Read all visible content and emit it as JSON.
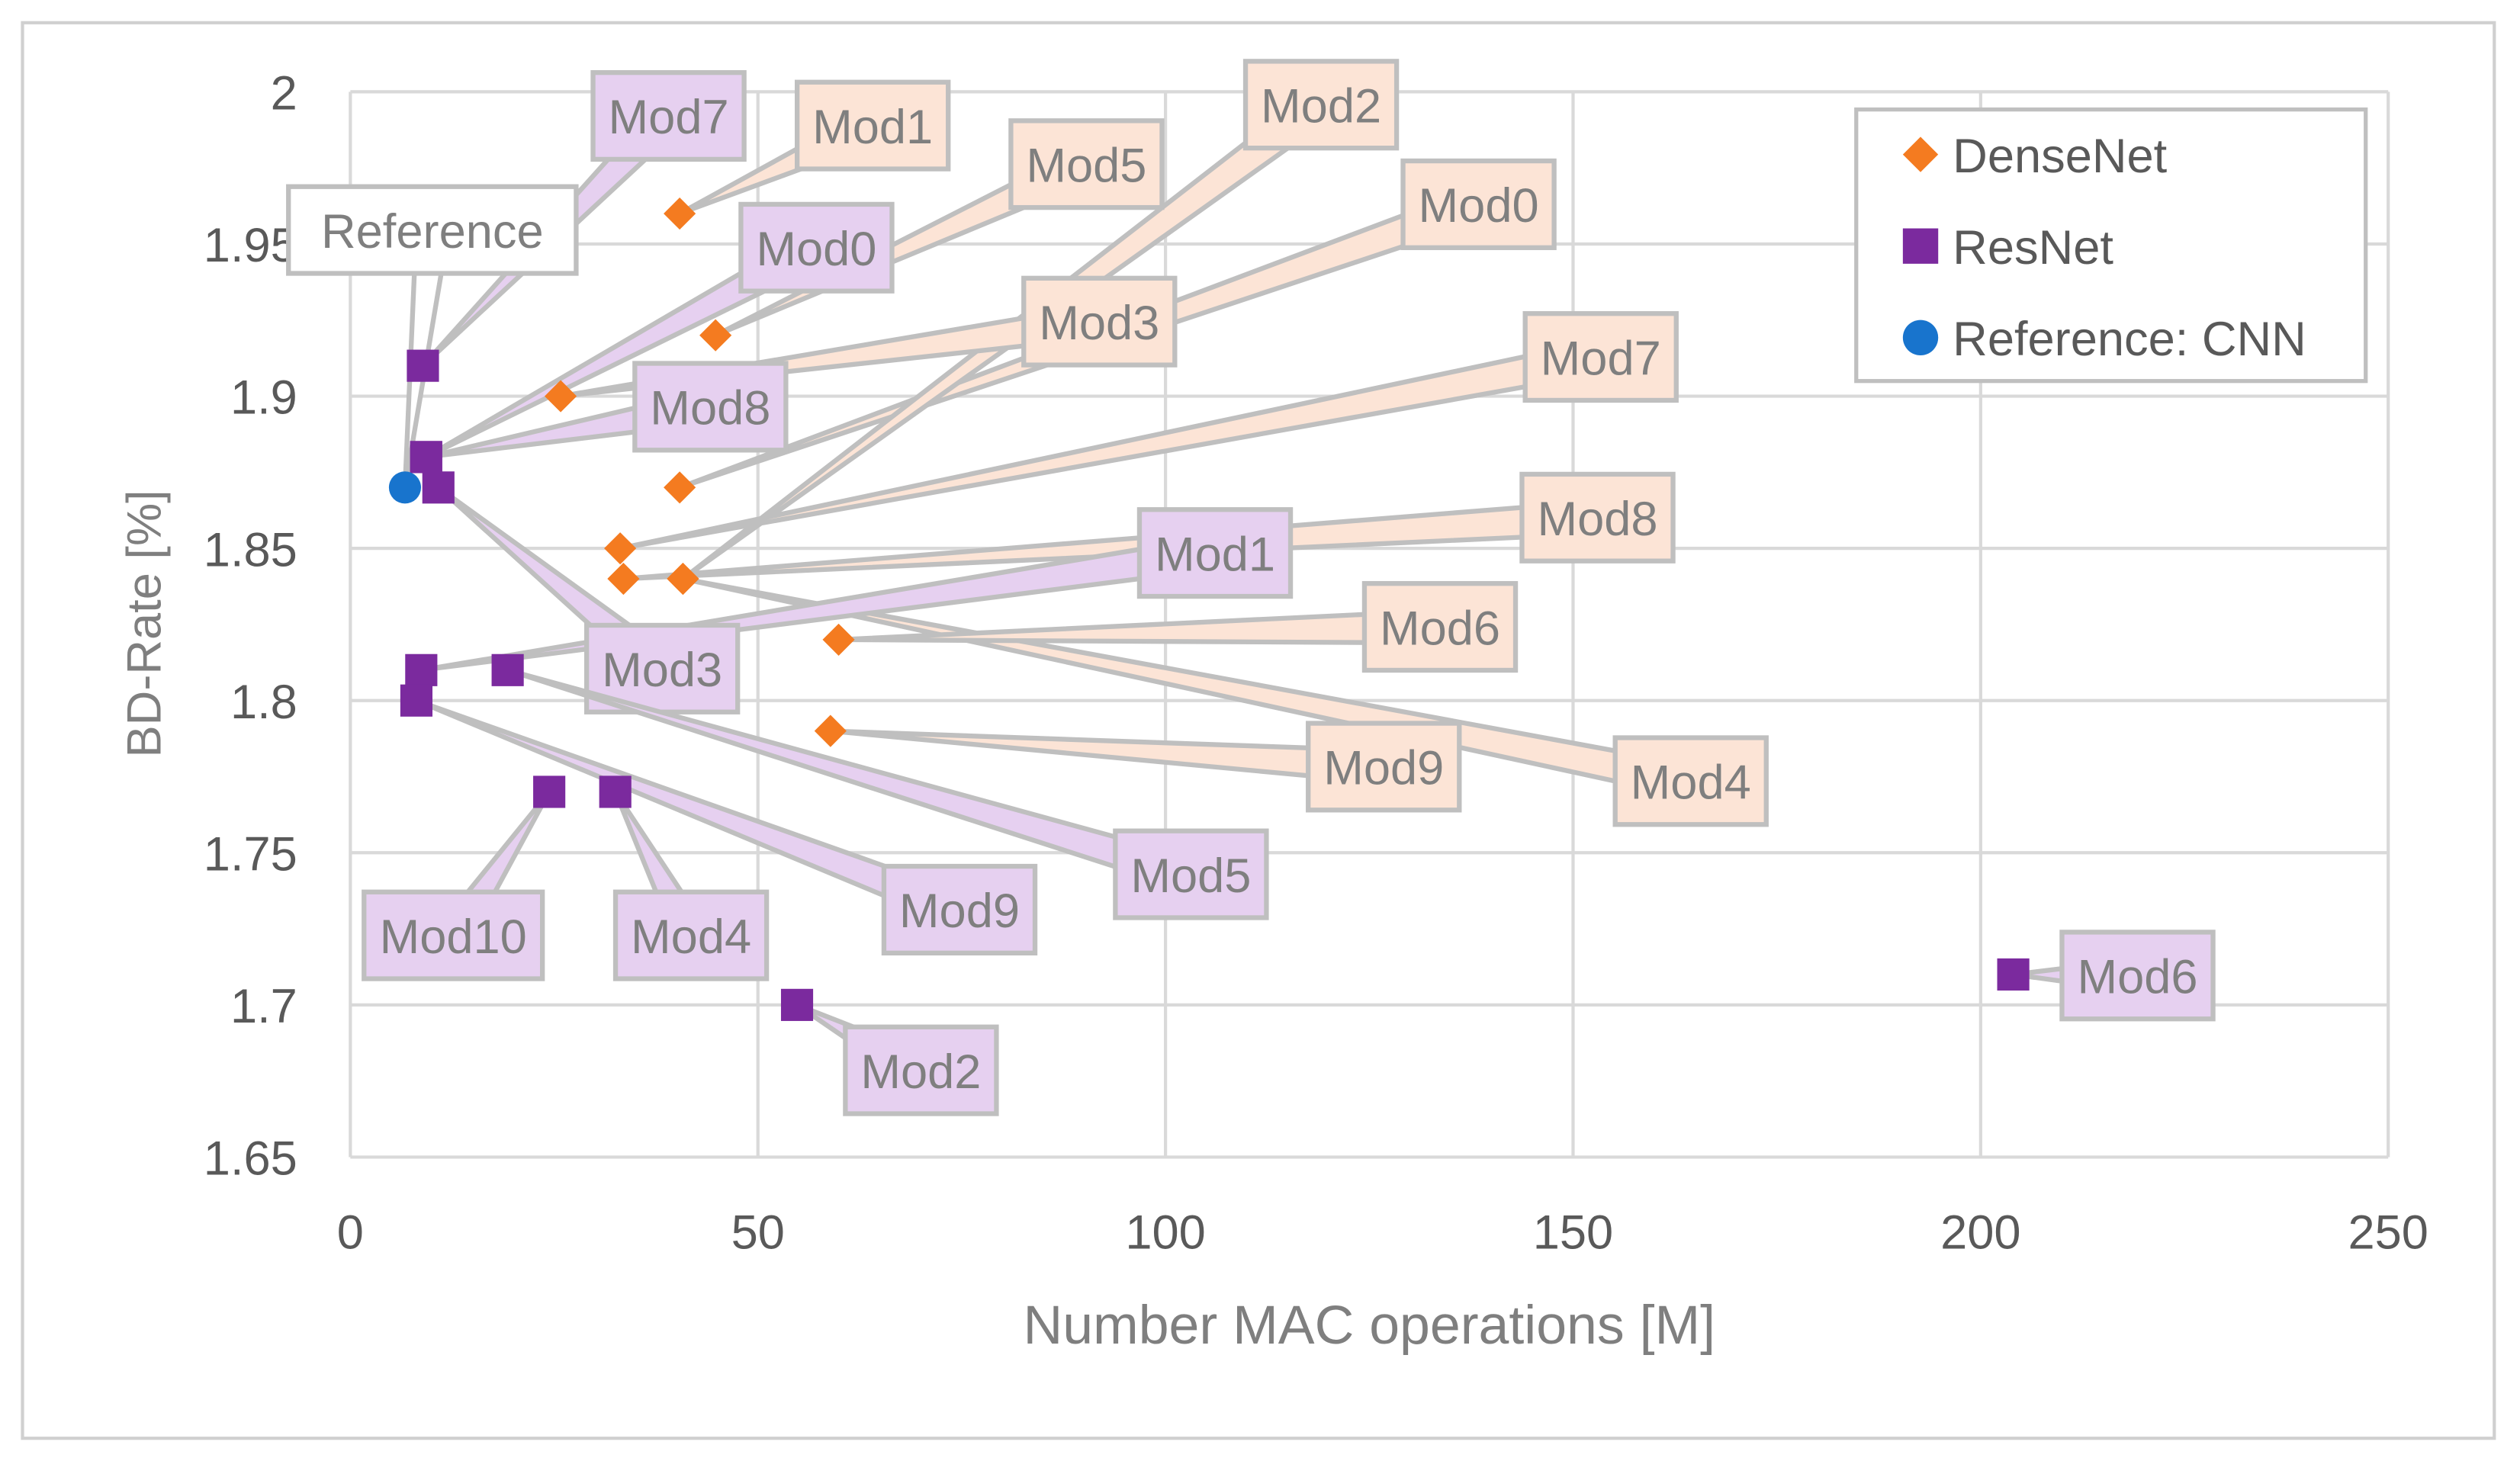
{
  "chart_data": {
    "type": "scatter",
    "title": "",
    "xlabel": "Number MAC operations [M]",
    "ylabel": "BD-Rate [%]",
    "xlim": [
      0,
      250
    ],
    "ylim": [
      1.65,
      2.0
    ],
    "x_ticks": [
      "0",
      "50",
      "100",
      "150",
      "200",
      "250"
    ],
    "y_ticks": [
      "1.65",
      "1.7",
      "1.75",
      "1.8",
      "1.85",
      "1.9",
      "1.95",
      "2"
    ],
    "grid": true,
    "legend_position": "top-right",
    "series": [
      {
        "name": "DenseNet",
        "color": "#F47B20",
        "marker": "diamond",
        "label_fill": "#FCE4D6",
        "points": [
          {
            "label": "Mod0",
            "x": 40.4,
            "y": 1.87
          },
          {
            "label": "Mod1",
            "x": 40.4,
            "y": 1.96
          },
          {
            "label": "Mod2",
            "x": 40.8,
            "y": 1.84
          },
          {
            "label": "Mod3",
            "x": 25.8,
            "y": 1.9
          },
          {
            "label": "Mod4",
            "x": 40.8,
            "y": 1.84
          },
          {
            "label": "Mod5",
            "x": 44.8,
            "y": 1.92
          },
          {
            "label": "Mod6",
            "x": 59.9,
            "y": 1.82
          },
          {
            "label": "Mod7",
            "x": 33.1,
            "y": 1.85
          },
          {
            "label": "Mod8",
            "x": 33.5,
            "y": 1.84
          },
          {
            "label": "Mod9",
            "x": 58.9,
            "y": 1.79
          }
        ]
      },
      {
        "name": "ResNet",
        "color": "#7B2A9E",
        "marker": "square",
        "label_fill": "#E6D0F0",
        "points": [
          {
            "label": "Mod0",
            "x": 9.3,
            "y": 1.88
          },
          {
            "label": "Mod1",
            "x": 8.7,
            "y": 1.81
          },
          {
            "label": "Mod2",
            "x": 54.8,
            "y": 1.7
          },
          {
            "label": "Mod3",
            "x": 10.8,
            "y": 1.87
          },
          {
            "label": "Mod4",
            "x": 32.5,
            "y": 1.77
          },
          {
            "label": "Mod5",
            "x": 19.3,
            "y": 1.81
          },
          {
            "label": "Mod6",
            "x": 204.0,
            "y": 1.71
          },
          {
            "label": "Mod7",
            "x": 8.9,
            "y": 1.91
          },
          {
            "label": "Mod8",
            "x": 9.3,
            "y": 1.88
          },
          {
            "label": "Mod9",
            "x": 8.1,
            "y": 1.8
          },
          {
            "label": "Mod10",
            "x": 24.4,
            "y": 1.77
          }
        ]
      },
      {
        "name": "Reference: CNN",
        "color": "#1874CD",
        "marker": "circle",
        "label_fill": "#FFFFFF",
        "points": [
          {
            "label": "Reference",
            "x": 6.7,
            "y": 1.87
          }
        ]
      }
    ]
  }
}
